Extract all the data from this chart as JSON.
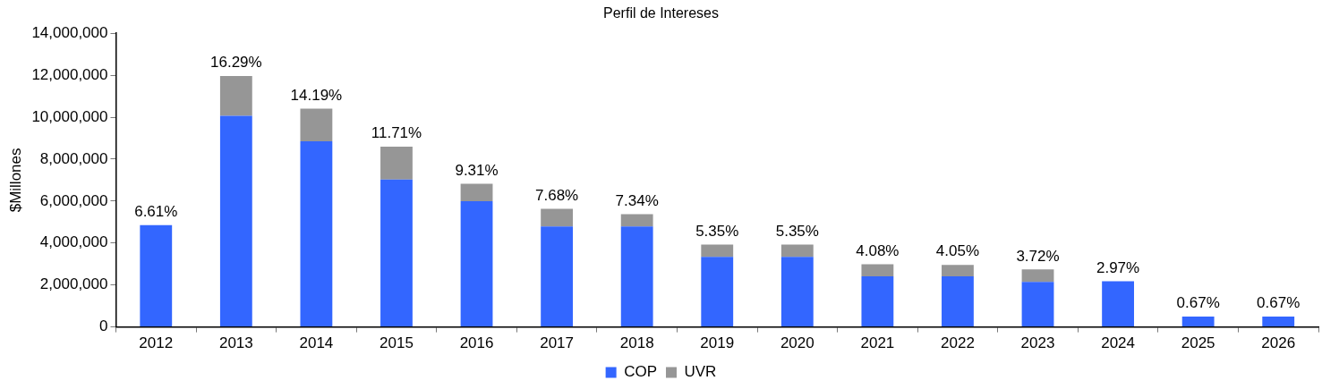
{
  "chart_data": {
    "type": "bar",
    "title": "Perfil de Intereses",
    "ylabel": "$Millones",
    "categories": [
      "2012",
      "2013",
      "2014",
      "2015",
      "2016",
      "2017",
      "2018",
      "2019",
      "2020",
      "2021",
      "2022",
      "2023",
      "2024",
      "2025",
      "2026"
    ],
    "stacked": true,
    "series": [
      {
        "name": "COP",
        "color": "#3366ff",
        "values": [
          4850000,
          10060000,
          8850000,
          7030000,
          5990000,
          4790000,
          4790000,
          3340000,
          3340000,
          2410000,
          2410000,
          2150000,
          2180000,
          490000,
          490000
        ]
      },
      {
        "name": "UVR",
        "color": "#969696",
        "values": [
          null,
          1900000,
          1560000,
          1560000,
          830000,
          840000,
          590000,
          590000,
          590000,
          580000,
          550000,
          590000,
          null,
          null,
          null
        ]
      }
    ],
    "ylim": [
      0,
      14000000
    ],
    "yticks": [
      {
        "value": 0,
        "label": "0"
      },
      {
        "value": 2000000,
        "label": "2,000,000"
      },
      {
        "value": 4000000,
        "label": "4,000,000"
      },
      {
        "value": 6000000,
        "label": "6,000,000"
      },
      {
        "value": 8000000,
        "label": "8,000,000"
      },
      {
        "value": 10000000,
        "label": "10,000,000"
      },
      {
        "value": 12000000,
        "label": "12,000,000"
      },
      {
        "value": 14000000,
        "label": "14,000,000"
      }
    ],
    "annotations": [
      {
        "text": "6.61%",
        "x": "2012",
        "y": 4850000
      },
      {
        "text": "16.29%",
        "x": "2013",
        "y": 11960000
      },
      {
        "text": "14.19%",
        "x": "2014",
        "y": 10410000
      },
      {
        "text": "11.71%",
        "x": "2015",
        "y": 8590000
      },
      {
        "text": "9.31%",
        "x": "2016",
        "y": 6820000
      },
      {
        "text": "7.68%",
        "x": "2017",
        "y": 5630000
      },
      {
        "text": "7.34%",
        "x": "2018",
        "y": 5380000
      },
      {
        "text": "5.35%",
        "x": "2019",
        "y": 3930000
      },
      {
        "text": "5.35%",
        "x": "2020",
        "y": 3930000
      },
      {
        "text": "4.08%",
        "x": "2021",
        "y": 2990000
      },
      {
        "text": "4.05%",
        "x": "2022",
        "y": 2960000
      },
      {
        "text": "3.72%",
        "x": "2023",
        "y": 2740000
      },
      {
        "text": "2.97%",
        "x": "2024",
        "y": 2180000
      },
      {
        "text": "0.67%",
        "x": "2025",
        "y": 490000
      },
      {
        "text": "0.67%",
        "x": "2026",
        "y": 490000
      }
    ],
    "legend": "bottom",
    "grid": false
  }
}
